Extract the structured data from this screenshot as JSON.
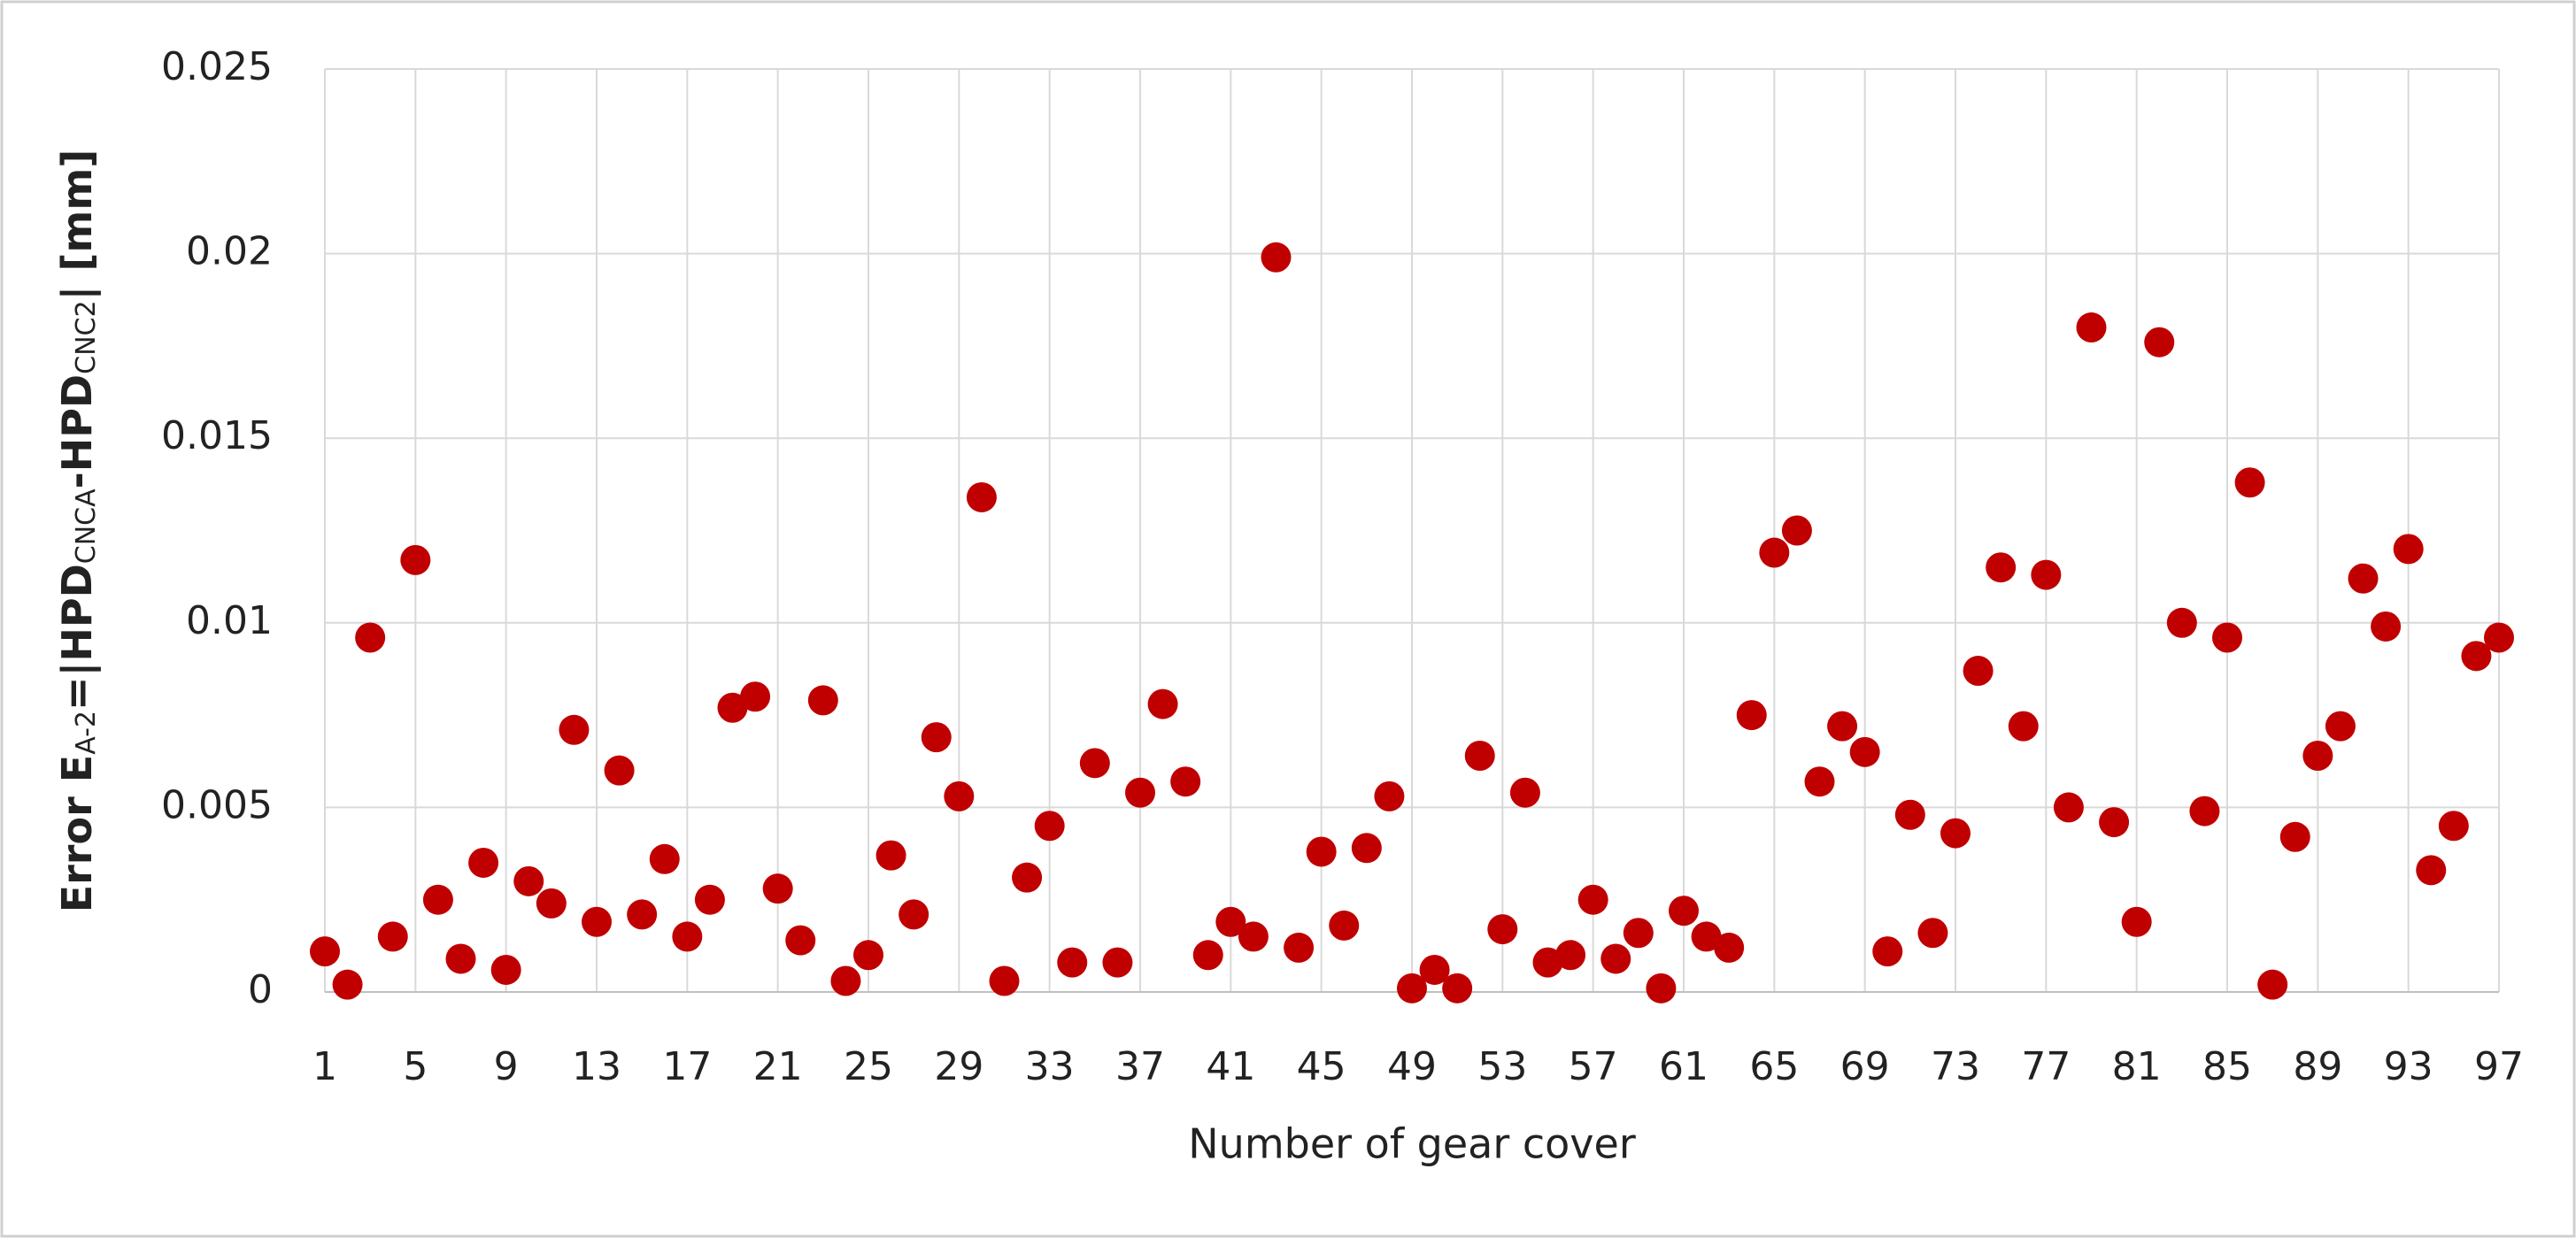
{
  "chart_data": {
    "type": "scatter",
    "ylabel_parts": [
      "Error E",
      "A-2",
      "=|HPD",
      "CNCA",
      "-HPD",
      "CNC2",
      "| [mm]"
    ],
    "xlabel": "Number of gear cover",
    "x": [
      1,
      2,
      3,
      4,
      5,
      6,
      7,
      8,
      9,
      10,
      11,
      12,
      13,
      14,
      15,
      16,
      17,
      18,
      19,
      20,
      21,
      22,
      23,
      24,
      25,
      26,
      27,
      28,
      29,
      30,
      31,
      32,
      33,
      34,
      35,
      36,
      37,
      38,
      39,
      40,
      41,
      42,
      43,
      44,
      45,
      46,
      47,
      48,
      49,
      50,
      51,
      52,
      53,
      54,
      55,
      56,
      57,
      58,
      59,
      60,
      61,
      62,
      63,
      64,
      65,
      66,
      67,
      68,
      69,
      70,
      71,
      72,
      73,
      74,
      75,
      76,
      77,
      78,
      79,
      80,
      81,
      82,
      83,
      84,
      85,
      86,
      87,
      88,
      89,
      90,
      91,
      92,
      93,
      94,
      95,
      96,
      97
    ],
    "series": [
      {
        "color": "#c00000",
        "values": [
          0.0011,
          0.0002,
          0.0096,
          0.0015,
          0.0117,
          0.0025,
          0.0009,
          0.0035,
          0.0006,
          0.003,
          0.0024,
          0.0071,
          0.0019,
          0.006,
          0.0021,
          0.0036,
          0.0015,
          0.0025,
          0.0077,
          0.008,
          0.0028,
          0.0014,
          0.0079,
          0.0003,
          0.001,
          0.0037,
          0.0021,
          0.0069,
          0.0053,
          0.0134,
          0.0003,
          0.0031,
          0.0045,
          0.0008,
          0.0062,
          0.0008,
          0.0054,
          0.0078,
          0.0057,
          0.001,
          0.0019,
          0.0015,
          0.0199,
          0.0012,
          0.0038,
          0.0018,
          0.0039,
          0.0053,
          0.0001,
          0.0006,
          0.0001,
          0.0064,
          0.0017,
          0.0054,
          0.0008,
          0.001,
          0.0025,
          0.0009,
          0.0016,
          0.0001,
          0.0022,
          0.0015,
          0.0012,
          0.0075,
          0.0119,
          0.0125,
          0.0057,
          0.0072,
          0.0065,
          0.0011,
          0.0048,
          0.0016,
          0.0043,
          0.0087,
          0.0115,
          0.0072,
          0.0113,
          0.005,
          0.018,
          0.0046,
          0.0019,
          0.0176,
          0.01,
          0.0049,
          0.0096,
          0.0138,
          0.0002,
          0.0042,
          0.0064,
          0.0072,
          0.0112,
          0.0099,
          0.012,
          0.0033,
          0.0045,
          0.0091,
          0.0096
        ]
      }
    ],
    "xlim": [
      1,
      97
    ],
    "xticks": [
      1,
      5,
      9,
      13,
      17,
      21,
      25,
      29,
      33,
      37,
      41,
      45,
      49,
      53,
      57,
      61,
      65,
      69,
      73,
      77,
      81,
      85,
      89,
      93,
      97
    ],
    "ylim": [
      0,
      0.025
    ],
    "yticks": [
      0,
      0.005,
      0.01,
      0.015,
      0.02,
      0.025
    ],
    "grid": true
  }
}
